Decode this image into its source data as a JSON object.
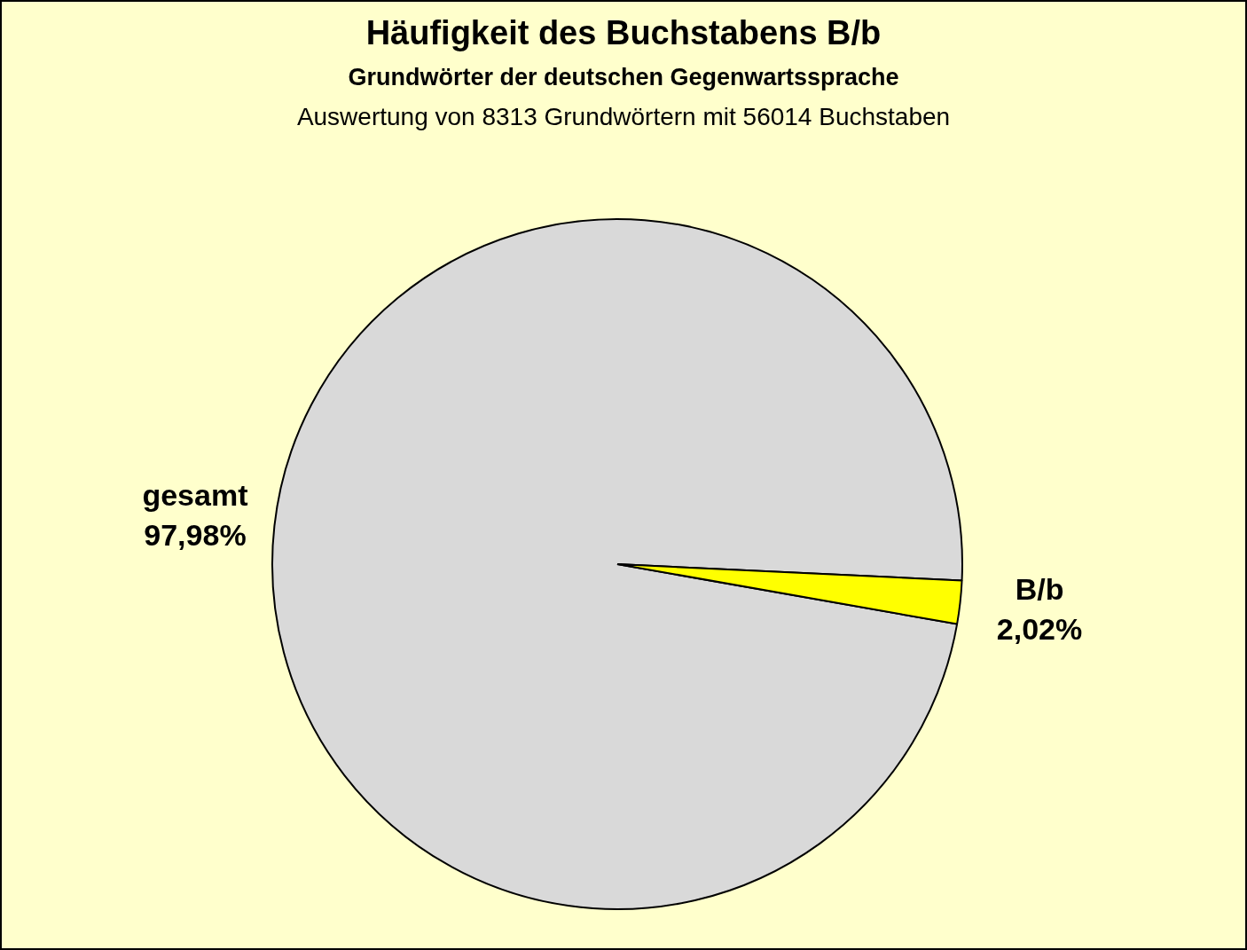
{
  "chart_data": {
    "type": "pie",
    "title": "Häufigkeit des Buchstabens B/b",
    "subtitle": "Grundwörter der deutschen Gegenwartssprache",
    "annotations": [
      "Auswertung von 8313 Grundwörtern mit 56014 Buchstaben"
    ],
    "categories": [
      "gesamt",
      "B/b"
    ],
    "values": [
      97.98,
      2.02
    ],
    "colors": [
      "#d9d9d9",
      "#ffff00"
    ],
    "value_labels": [
      "97,98%",
      "2,02%"
    ]
  }
}
